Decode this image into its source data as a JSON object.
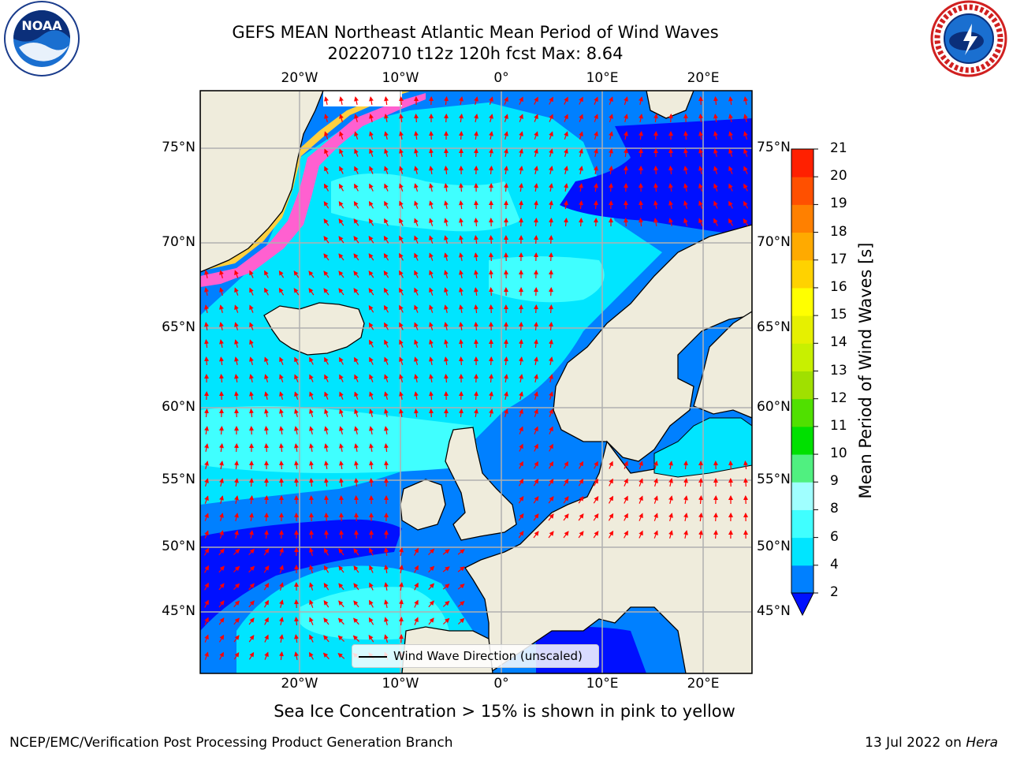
{
  "header": {
    "title_line1": "GEFS MEAN Northeast Atlantic Mean Period of Wind Waves",
    "title_line2": "20220710 t12z 120h fcst   Max: 8.64"
  },
  "logos": {
    "left": "noaa-logo",
    "right": "nws-logo"
  },
  "map": {
    "lon_labels_top": [
      "20°W",
      "10°W",
      "0°",
      "10°E",
      "20°E"
    ],
    "lon_labels_bottom": [
      "20°W",
      "10°W",
      "0°",
      "10°E",
      "20°E"
    ],
    "lat_labels_left": [
      "75°N",
      "70°N",
      "65°N",
      "60°N",
      "55°N",
      "50°N",
      "45°N"
    ],
    "lat_labels_right": [
      "75°N",
      "70°N",
      "65°N",
      "60°N",
      "55°N",
      "50°N",
      "45°N"
    ],
    "legend_label": "Wind Wave Direction (unscaled)",
    "vector_color": "#ff0000",
    "land_color": "#efecdc",
    "grid_color": "#b0b0b0"
  },
  "colorbar": {
    "label": "Mean Period of Wind Waves [s]",
    "ticks": [
      "2",
      "4",
      "6",
      "8",
      "9",
      "10",
      "11",
      "12",
      "13",
      "14",
      "15",
      "16",
      "17",
      "18",
      "19",
      "20",
      "21"
    ],
    "colors": [
      "#0080ff",
      "#00e5ff",
      "#40ffff",
      "#a0ffff",
      "#50f080",
      "#00e000",
      "#50e000",
      "#a0e000",
      "#c8f000",
      "#e6f000",
      "#ffff00",
      "#ffd200",
      "#ffaa00",
      "#ff8000",
      "#ff5000",
      "#ff2000"
    ],
    "extend_color": "#0010ff"
  },
  "sea_ice_note": "Sea Ice Concentration > 15% is shown in pink to yellow",
  "footer": {
    "left": "NCEP/EMC/Verification Post Processing Product Generation Branch",
    "right_date": "13 Jul 2022 on",
    "right_machine": "Hera"
  }
}
